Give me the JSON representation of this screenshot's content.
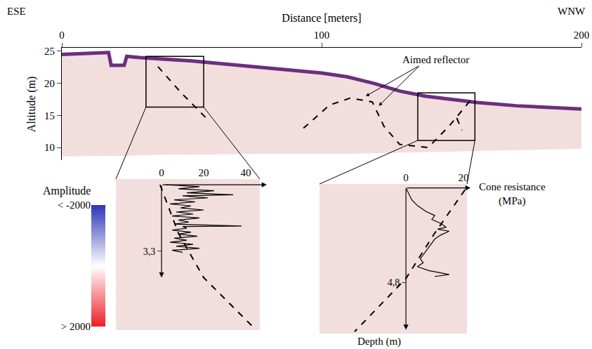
{
  "chart_data": {
    "type": "gpr_profile",
    "direction_labels": {
      "left": "ESE",
      "right": "WNW"
    },
    "xlabel": "Distance [meters]",
    "ylabel": "Altitude (m)",
    "xlim": [
      0,
      200
    ],
    "xticks": [
      0,
      100,
      200
    ],
    "ylim": [
      8,
      25.5
    ],
    "yticks": [
      10,
      15,
      20,
      25
    ],
    "section": {
      "color": "#f3dede",
      "surface_color": "#6b2f7e",
      "distance": [
        0,
        10,
        18,
        19,
        24,
        25,
        30,
        50,
        75,
        100,
        110,
        120,
        130,
        140,
        150,
        160,
        175,
        190,
        200
      ],
      "top": [
        24.5,
        24.6,
        24.8,
        22.8,
        22.8,
        24.2,
        24,
        23.5,
        22.5,
        21.6,
        21,
        20,
        18.8,
        18,
        17.5,
        17,
        16.5,
        16.2,
        16
      ],
      "bottom": [
        8.6,
        8.7,
        8.7,
        8.7,
        8.7,
        8.7,
        8.8,
        8.9,
        9,
        9,
        9,
        9.1,
        9.2,
        9.3,
        9.4,
        9.5,
        9.6,
        9.7,
        9.8
      ]
    },
    "reflectors": {
      "line_style": "dash",
      "color": "#000000",
      "segments": [
        {
          "x": [
            37,
            46,
            56.5
          ],
          "y": [
            22.6,
            18.5,
            14.2
          ]
        },
        {
          "x": [
            93,
            103,
            111,
            119.5,
            124,
            130,
            141,
            149,
            158
          ],
          "y": [
            13,
            16.6,
            17.7,
            17.1,
            13.3,
            10.5,
            10,
            13.3,
            17.7
          ]
        },
        {
          "x": [
            152,
            154
          ],
          "y": [
            14.6,
            12.7
          ]
        }
      ]
    },
    "annotation": {
      "text": "Aimed reflector",
      "x": 143.8,
      "y": 23.7,
      "arrows": [
        {
          "x": 117,
          "y": 18
        },
        {
          "x": 122,
          "y": 16.5
        }
      ]
    },
    "zoom_boxes": [
      {
        "xlim": [
          32.4,
          54.6
        ],
        "ylim": [
          16.3,
          24.2
        ]
      },
      {
        "xlim": [
          137,
          159
        ],
        "ylim": [
          11.1,
          18.5
        ]
      }
    ],
    "cone_label": "Cone resistance (MPa)",
    "depth_label": "Depth (m)",
    "insets": [
      {
        "xlim": [
          -21.7,
          46.7
        ],
        "xticks": [
          0,
          20,
          40
        ],
        "ylim": [
          -0.28,
          7.2
        ],
        "yticks": [
          {
            "value": 3.3,
            "label": "3,3"
          }
        ],
        "cone_axis_end": 50,
        "depth_axis_end": 4.6,
        "cpt": {
          "depth": [
            0,
            0.1,
            0.2,
            0.3,
            0.4,
            0.5,
            0.55,
            0.65,
            0.75,
            0.85,
            0.95,
            1.05,
            1.15,
            1.25,
            1.35,
            1.45,
            1.55,
            1.65,
            1.75,
            1.85,
            1.95,
            2.05,
            2.07,
            2.15,
            2.25,
            2.35,
            2.45,
            2.55,
            2.65,
            2.75,
            2.85,
            2.95,
            3.05,
            3.15,
            3.25,
            3.35
          ],
          "cone": [
            2,
            18,
            8,
            25,
            12,
            34,
            10,
            22,
            6,
            16,
            4,
            14,
            9,
            20,
            7,
            15,
            5,
            18,
            8,
            13,
            6,
            38,
            10,
            12,
            5,
            14,
            8,
            17,
            6,
            12,
            4,
            15,
            7,
            18,
            5,
            10
          ]
        },
        "reflector": {
          "x": [
            -0.7,
            8,
            20,
            43
          ],
          "y": [
            0,
            2.4,
            4.6,
            7.0
          ]
        }
      },
      {
        "xlim": [
          -30,
          21.2
        ],
        "xticks": [
          0,
          20
        ],
        "ylim": [
          -0.2,
          7.4
        ],
        "yticks": [
          {
            "value": 4.8,
            "label": "4,8"
          }
        ],
        "cone_axis_end": 22.4,
        "depth_axis_end": 7.2,
        "cpt": {
          "depth": [
            0,
            0.3,
            0.6,
            0.9,
            1.2,
            1.4,
            1.6,
            1.8,
            2.0,
            2.1,
            2.2,
            2.4,
            2.6,
            2.8,
            3.0,
            3.2,
            3.4,
            3.6,
            3.8,
            4.0,
            4.2,
            4.3,
            4.4,
            4.5
          ],
          "cone": [
            0,
            1,
            2,
            4,
            7,
            10,
            9,
            12,
            14,
            11,
            15,
            12,
            10,
            9,
            8,
            7,
            6,
            5,
            6,
            4,
            8,
            12,
            15,
            10
          ]
        },
        "reflector": {
          "x": [
            20.5,
            10,
            0,
            -17.8
          ],
          "y": [
            0.1,
            2.3,
            4.6,
            7.3
          ]
        }
      }
    ],
    "colorbar": {
      "title": "Amplitude",
      "range": [
        -2000,
        2000
      ],
      "ticks": [
        {
          "value": -2000,
          "label": "< -2000"
        },
        {
          "value": 2000,
          "label": "> 2000"
        }
      ],
      "colors": [
        "#2e35b8",
        "#ffffff",
        "#ee1c25"
      ]
    }
  }
}
